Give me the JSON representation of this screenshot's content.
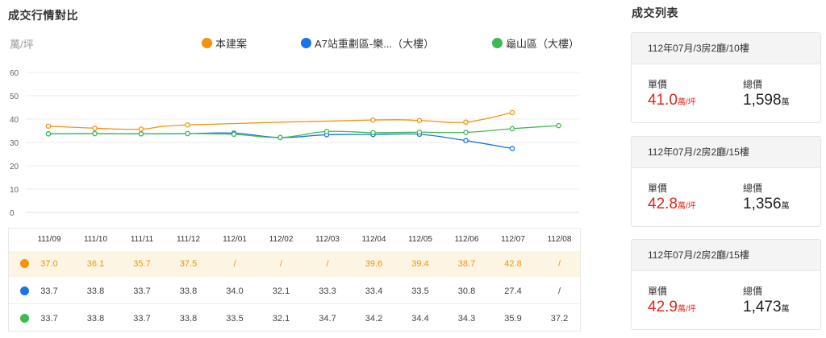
{
  "left_title": "成交行情對比",
  "right_title": "成交列表",
  "chart_data": {
    "type": "line",
    "ylabel": "萬/坪",
    "ylim": [
      0,
      60
    ],
    "yticks": [
      0,
      10,
      20,
      30,
      40,
      50,
      60
    ],
    "grid": true,
    "legend_position": "top",
    "categories": [
      "111/09",
      "111/10",
      "111/11",
      "111/12",
      "112/01",
      "112/02",
      "112/03",
      "112/04",
      "112/05",
      "112/06",
      "112/07",
      "112/08"
    ],
    "series": [
      {
        "name": "本建案",
        "color": "#f5920a",
        "values": [
          37.0,
          36.1,
          35.7,
          37.5,
          null,
          null,
          null,
          39.6,
          39.4,
          38.7,
          42.8,
          null
        ],
        "labels": [
          "37.0",
          "36.1",
          "35.7",
          "37.5",
          "/",
          "/",
          "/",
          "39.6",
          "39.4",
          "38.7",
          "42.8",
          "/"
        ]
      },
      {
        "name": "A7站重劃區-樂...（大樓）",
        "color": "#1a73e8",
        "values": [
          33.7,
          33.8,
          33.7,
          33.8,
          34.0,
          32.1,
          33.3,
          33.4,
          33.5,
          30.8,
          27.4,
          null
        ],
        "labels": [
          "33.7",
          "33.8",
          "33.7",
          "33.8",
          "34.0",
          "32.1",
          "33.3",
          "33.4",
          "33.5",
          "30.8",
          "27.4",
          "/"
        ]
      },
      {
        "name": "龜山區（大樓）",
        "color": "#3cba54",
        "values": [
          33.7,
          33.8,
          33.7,
          33.8,
          33.5,
          32.1,
          34.7,
          34.2,
          34.4,
          34.3,
          35.9,
          37.2
        ],
        "labels": [
          "33.7",
          "33.8",
          "33.7",
          "33.8",
          "33.5",
          "32.1",
          "34.7",
          "34.2",
          "34.4",
          "34.3",
          "35.9",
          "37.2"
        ]
      }
    ]
  },
  "transactions": [
    {
      "title": "112年07月/3房2廳/10樓",
      "unit_price_label": "單價",
      "unit_price": "41.0",
      "unit_price_unit": "萬/坪",
      "total_label": "總價",
      "total": "1,598",
      "total_unit": "萬"
    },
    {
      "title": "112年07月/2房2廳/15樓",
      "unit_price_label": "單價",
      "unit_price": "42.8",
      "unit_price_unit": "萬/坪",
      "total_label": "總價",
      "total": "1,356",
      "total_unit": "萬"
    },
    {
      "title": "112年07月/2房2廳/15樓",
      "unit_price_label": "單價",
      "unit_price": "42.9",
      "unit_price_unit": "萬/坪",
      "total_label": "總價",
      "total": "1,473",
      "total_unit": "萬"
    }
  ]
}
